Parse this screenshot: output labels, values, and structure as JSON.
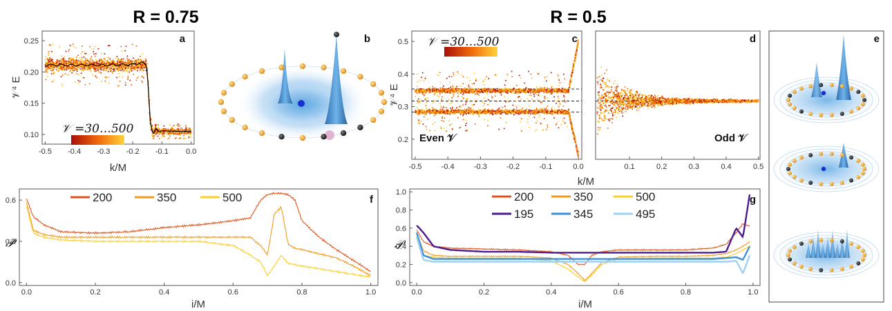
{
  "headers": {
    "left": "R = 0.75",
    "right": "R = 0.5"
  },
  "colors": {
    "dot_dark": "#b8130a",
    "dot_mid": "#ee6a06",
    "dot_light": "#ffc628",
    "line200": "#e0531a",
    "line350": "#f39a1d",
    "line500": "#fad02a",
    "line195": "#4b1a8f",
    "line345": "#3f8fdc",
    "line495": "#9fd0f4",
    "blob": "#3c8fd4",
    "ring": "#f2a93a"
  },
  "panels": {
    "a": {
      "letter": "a",
      "xlabel": "k/M",
      "ylabel": "𝒱⁴ E",
      "colorbar_label": "𝒱 =30…500",
      "xticks": [
        "-0.5",
        "-0.4",
        "-0.3",
        "-0.2",
        "-0.1",
        "0.0"
      ],
      "yticks": [
        "0.10",
        "0.15",
        "0.20",
        "0.25"
      ]
    },
    "b": {
      "letter": "b",
      "icons": [
        "density-surface-icon"
      ]
    },
    "c": {
      "letter": "c",
      "ylabel": "𝒱⁴ E",
      "colorbar_label": "𝒱 =30…500",
      "note": "Even 𝒱",
      "xticks": [
        "-0.5",
        "-0.4",
        "-0.3",
        "-0.2",
        "-0.1",
        "0.0"
      ],
      "yticks": [
        "0.2",
        "0.3",
        "0.4",
        "0.5"
      ]
    },
    "d": {
      "letter": "d",
      "note": "Odd 𝒱",
      "xticks": [
        "0.1",
        "0.2",
        "0.3",
        "0.4",
        "0.5"
      ]
    },
    "cd_xlabel": "k/M",
    "e": {
      "letter": "e",
      "icons": [
        "density-surface-icon",
        "density-surface-icon",
        "density-surface-icon"
      ]
    },
    "f": {
      "letter": "f",
      "xlabel": "i/M",
      "ylabel": "𝒫",
      "xticks": [
        "0.0",
        "0.2",
        "0.4",
        "0.6",
        "0.8",
        "1.0"
      ],
      "yticks": [
        "0.0",
        "0.3",
        "0.6"
      ],
      "legend": [
        "200",
        "350",
        "500"
      ]
    },
    "g": {
      "letter": "g",
      "xlabel": "i/M",
      "ylabel": "𝒫",
      "xticks": [
        "0.0",
        "0.2",
        "0.4",
        "0.6",
        "0.8",
        "1.0"
      ],
      "yticks": [
        "0.0",
        "0.2",
        "0.4",
        "0.6",
        "0.8",
        "1.0"
      ],
      "legend": [
        "200",
        "350",
        "500",
        "195",
        "345",
        "495"
      ]
    }
  },
  "chart_data": [
    {
      "id": "a",
      "type": "scatter",
      "xlabel": "k/M",
      "ylabel": "𝒱⁴ E",
      "xlim": [
        -0.5,
        0.0
      ],
      "ylim": [
        0.09,
        0.26
      ],
      "colorbar": [
        30,
        500
      ],
      "line": {
        "x": [
          -0.5,
          -0.4,
          -0.3,
          -0.2,
          -0.17,
          -0.155,
          -0.15,
          -0.14,
          -0.13,
          -0.12,
          -0.11,
          -0.1,
          -0.05,
          0.0
        ],
        "y": [
          0.211,
          0.211,
          0.211,
          0.212,
          0.215,
          0.212,
          0.2,
          0.12,
          0.1,
          0.11,
          0.104,
          0.106,
          0.105,
          0.105
        ]
      },
      "scatter_bands": [
        {
          "x": [
            -0.5,
            -0.155
          ],
          "center": 0.211,
          "spread": 0.013,
          "outliers": 0.035
        },
        {
          "x": [
            -0.12,
            0.0
          ],
          "center": 0.105,
          "spread": 0.006,
          "outliers": 0.012
        }
      ]
    },
    {
      "id": "c",
      "type": "scatter",
      "xlabel": "k/M",
      "ylabel": "𝒱⁴ E",
      "xlim": [
        -0.5,
        0.0
      ],
      "ylim": [
        0.15,
        0.52
      ],
      "colorbar": [
        30,
        500
      ],
      "dashed": [
        0.354,
        0.317,
        0.283
      ],
      "scatter_bands": [
        {
          "x": [
            -0.5,
            -0.03
          ],
          "center": 0.349,
          "spread": 0.01,
          "outliers": 0.06
        },
        {
          "x": [
            -0.5,
            -0.03
          ],
          "center": 0.284,
          "spread": 0.01,
          "outliers": 0.06
        },
        {
          "x": [
            -0.03,
            0.0
          ],
          "from": 0.35,
          "to": 0.5,
          "spread": 0.012
        },
        {
          "x": [
            -0.03,
            0.0
          ],
          "from": 0.284,
          "to": 0.15,
          "spread": 0.012
        }
      ]
    },
    {
      "id": "d",
      "type": "scatter",
      "xlabel": "k/M",
      "xlim": [
        0.0,
        0.5
      ],
      "ylim": [
        0.15,
        0.52
      ],
      "dashed": [
        0.317
      ],
      "scatter_bands": [
        {
          "x": [
            0.0,
            0.5
          ],
          "center": 0.317,
          "spread_start": 0.15,
          "spread_end": 0.006,
          "decay": 0.08
        }
      ]
    },
    {
      "id": "f",
      "type": "line",
      "xlabel": "i/M",
      "ylabel": "𝒫",
      "xlim": [
        0.0,
        1.0
      ],
      "ylim": [
        0.0,
        0.66
      ],
      "x": [
        0,
        0.02,
        0.05,
        0.1,
        0.2,
        0.3,
        0.4,
        0.5,
        0.6,
        0.65,
        0.68,
        0.7,
        0.72,
        0.74,
        0.76,
        0.78,
        0.8,
        0.85,
        0.9,
        0.95,
        1.0
      ],
      "series": [
        {
          "name": "200",
          "values": [
            0.61,
            0.48,
            0.42,
            0.37,
            0.36,
            0.37,
            0.4,
            0.42,
            0.45,
            0.47,
            0.6,
            0.64,
            0.65,
            0.65,
            0.64,
            0.6,
            0.45,
            0.33,
            0.24,
            0.16,
            0.08
          ]
        },
        {
          "name": "350",
          "values": [
            0.58,
            0.38,
            0.35,
            0.33,
            0.33,
            0.33,
            0.33,
            0.33,
            0.33,
            0.33,
            0.27,
            0.2,
            0.5,
            0.55,
            0.28,
            0.25,
            0.24,
            0.21,
            0.18,
            0.12,
            0.05
          ]
        },
        {
          "name": "500",
          "values": [
            0.55,
            0.36,
            0.33,
            0.31,
            0.3,
            0.3,
            0.3,
            0.3,
            0.27,
            0.2,
            0.15,
            0.05,
            0.12,
            0.2,
            0.14,
            0.13,
            0.12,
            0.1,
            0.08,
            0.06,
            0.04
          ]
        }
      ]
    },
    {
      "id": "g",
      "type": "line",
      "xlabel": "i/M",
      "ylabel": "𝒫",
      "xlim": [
        0.0,
        1.0
      ],
      "ylim": [
        0.0,
        1.0
      ],
      "x": [
        0,
        0.02,
        0.05,
        0.1,
        0.2,
        0.3,
        0.4,
        0.45,
        0.48,
        0.5,
        0.52,
        0.55,
        0.6,
        0.7,
        0.8,
        0.88,
        0.92,
        0.95,
        0.97,
        0.99
      ],
      "series": [
        {
          "name": "200",
          "values": [
            0.58,
            0.45,
            0.4,
            0.38,
            0.37,
            0.36,
            0.34,
            0.3,
            0.2,
            0.2,
            0.3,
            0.34,
            0.36,
            0.36,
            0.36,
            0.38,
            0.42,
            0.55,
            0.65,
            0.62
          ]
        },
        {
          "name": "350",
          "values": [
            0.55,
            0.35,
            0.3,
            0.29,
            0.29,
            0.29,
            0.27,
            0.2,
            0.1,
            0.02,
            0.1,
            0.22,
            0.28,
            0.29,
            0.29,
            0.3,
            0.32,
            0.36,
            0.4,
            0.45
          ]
        },
        {
          "name": "500",
          "values": [
            0.52,
            0.3,
            0.28,
            0.27,
            0.27,
            0.27,
            0.24,
            0.15,
            0.06,
            0.01,
            0.08,
            0.2,
            0.26,
            0.27,
            0.27,
            0.27,
            0.28,
            0.32,
            0.36,
            0.4
          ]
        },
        {
          "name": "195",
          "values": [
            0.63,
            0.55,
            0.4,
            0.36,
            0.34,
            0.34,
            0.33,
            0.33,
            0.33,
            0.33,
            0.33,
            0.33,
            0.33,
            0.33,
            0.33,
            0.33,
            0.34,
            0.6,
            0.5,
            0.97
          ]
        },
        {
          "name": "345",
          "values": [
            0.55,
            0.3,
            0.26,
            0.26,
            0.26,
            0.26,
            0.26,
            0.26,
            0.26,
            0.26,
            0.26,
            0.26,
            0.26,
            0.26,
            0.26,
            0.26,
            0.27,
            0.28,
            0.25,
            0.4
          ]
        },
        {
          "name": "495",
          "values": [
            0.5,
            0.25,
            0.23,
            0.23,
            0.23,
            0.23,
            0.23,
            0.23,
            0.23,
            0.23,
            0.23,
            0.23,
            0.23,
            0.23,
            0.23,
            0.23,
            0.23,
            0.24,
            0.1,
            0.3
          ]
        }
      ]
    }
  ]
}
